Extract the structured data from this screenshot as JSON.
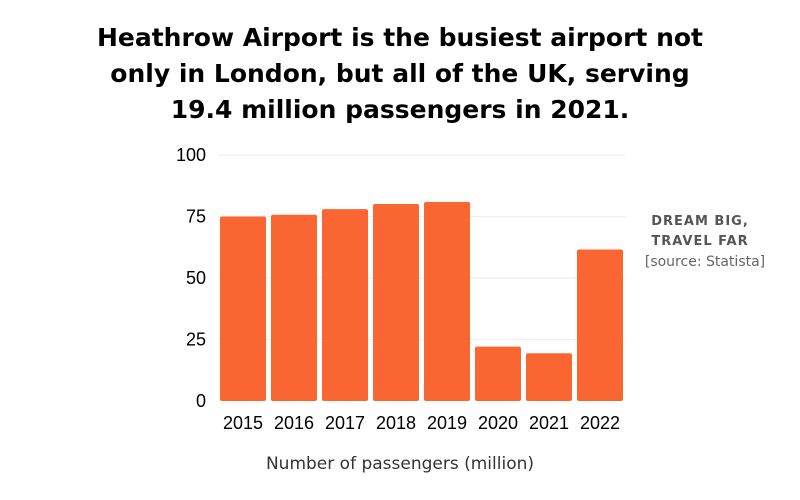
{
  "title_lines": [
    "Heathrow Airport is the busiest airport not",
    "only in London, but all of the UK, serving",
    "19.4 million passengers in 2021."
  ],
  "brand": {
    "line1": "DREAM BIG,",
    "line2": "TRAVEL FAR"
  },
  "source": "[source: Statista]",
  "colors": {
    "bar": "#f96631",
    "grid": "#eeeeee",
    "text": "#000000"
  },
  "chart_data": {
    "type": "bar",
    "categories": [
      "2015",
      "2016",
      "2017",
      "2018",
      "2019",
      "2020",
      "2021",
      "2022"
    ],
    "values": [
      75,
      75.7,
      78,
      80.1,
      80.9,
      22.1,
      19.4,
      61.6
    ],
    "xlabel": "Number of passengers (million)",
    "ylabel": "",
    "ylim": [
      0,
      100
    ],
    "yticks": [
      0,
      25,
      50,
      75,
      100
    ],
    "grid": true,
    "legend": "none"
  }
}
